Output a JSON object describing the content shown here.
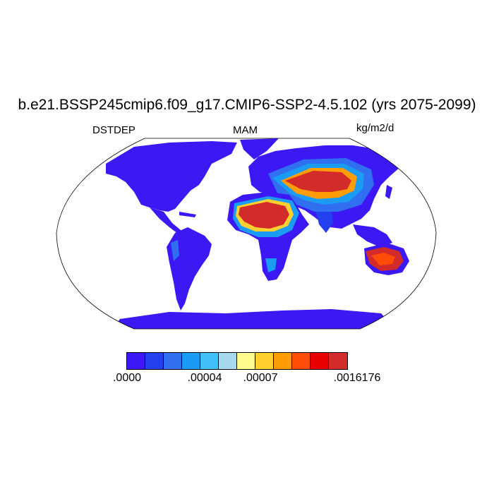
{
  "title": "b.e21.BSSP245cmip6.f09_g17.CMIP6-SSP2-4.5.102 (yrs 2075-2099)",
  "left_label": "DSTDEP",
  "center_label": "MAM",
  "right_label": "kg/m2/d",
  "colors": {
    "background": "#ffffff",
    "ocean": "#ffffff",
    "low": "#3c18f4",
    "high": "#d32a2a"
  },
  "colorbar": {
    "colors": [
      "#3c18f4",
      "#2440ee",
      "#2f6ff0",
      "#1a9cf5",
      "#42c0f5",
      "#a8d8f0",
      "#fffb8a",
      "#ffd02e",
      "#ff9c06",
      "#ff4c06",
      "#e80000",
      "#d32a2a"
    ],
    "tick_labels": [
      ".0000",
      ".00004",
      ".00007",
      ".0016176"
    ]
  }
}
